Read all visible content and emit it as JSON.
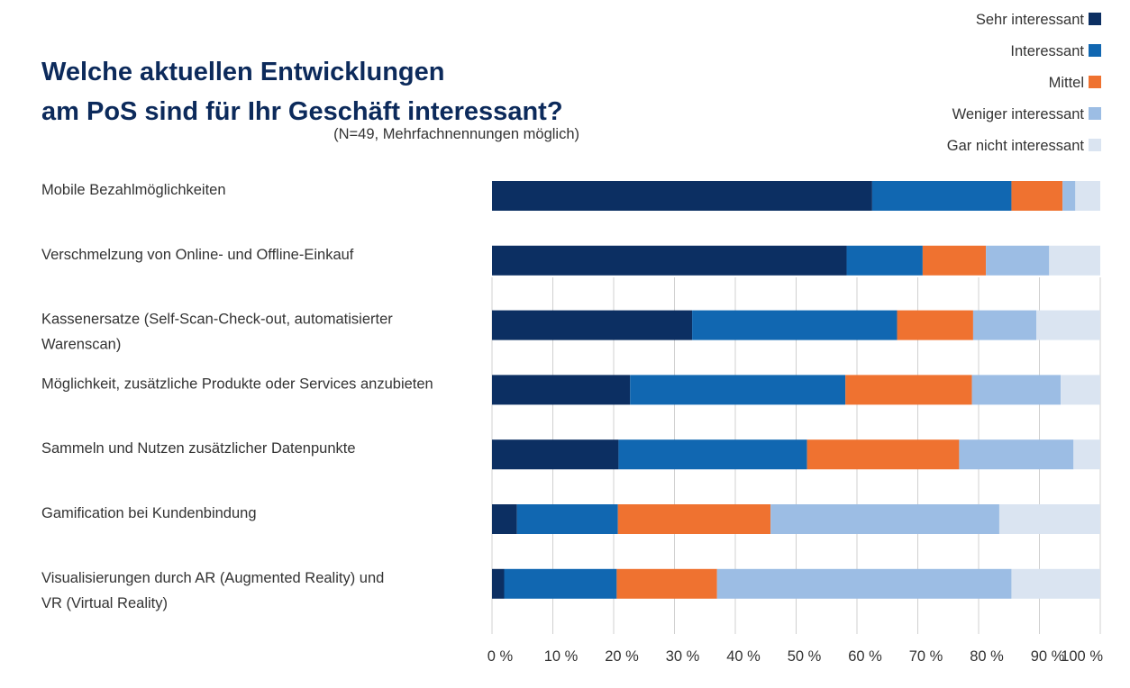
{
  "chart_data": {
    "type": "bar",
    "orientation": "horizontal",
    "stacked": true,
    "title_lines": [
      "Welche aktuellen Entwicklungen",
      "am PoS sind für Ihr Geschäft interessant?"
    ],
    "subtitle": "(N=49, Mehrfachnennungen möglich)",
    "categories": [
      [
        "Mobile Bezahlmöglichkeiten"
      ],
      [
        "Verschmelzung von Online- und Offline-Einkauf"
      ],
      [
        "Kassenersatze (Self-Scan-Check-out, automatisierter",
        "Warenscan)"
      ],
      [
        "Möglichkeit, zusätzliche Produkte oder Services anzubieten"
      ],
      [
        "Sammeln und Nutzen zusätzlicher Datenpunkte"
      ],
      [
        "Gamification bei Kundenbindung"
      ],
      [
        "Visualisierungen durch AR (Augmented Reality) und",
        "VR (Virtual Reality)"
      ]
    ],
    "series": [
      {
        "name": "Sehr interessant",
        "color": "#0c2f62",
        "values": [
          62.5,
          58.3,
          32.9,
          22.7,
          20.8,
          4.1,
          2.0
        ]
      },
      {
        "name": "Interessant",
        "color": "#1167b1",
        "values": [
          22.9,
          12.5,
          33.7,
          35.4,
          31.0,
          16.6,
          18.5
        ]
      },
      {
        "name": "Mittel",
        "color": "#ef7230",
        "values": [
          8.4,
          10.4,
          12.5,
          20.8,
          25.0,
          25.1,
          16.5
        ]
      },
      {
        "name": "Weniger interessant",
        "color": "#9cbde4",
        "values": [
          2.1,
          10.4,
          10.4,
          14.6,
          18.8,
          37.6,
          48.4
        ]
      },
      {
        "name": "Gar nicht interessant",
        "color": "#dae4f1",
        "values": [
          4.1,
          8.4,
          10.5,
          6.5,
          4.4,
          16.6,
          14.6
        ]
      }
    ],
    "xaxis": {
      "ticks": [
        0,
        10,
        20,
        30,
        40,
        50,
        60,
        70,
        80,
        90,
        100
      ],
      "tick_labels": [
        "0 %",
        "10 %",
        "20 %",
        "30 %",
        "40 %",
        "50 %",
        "60 %",
        "70 %",
        "80 %",
        "90 %",
        "100 %"
      ]
    },
    "xlim": [
      0,
      100
    ],
    "grid": "vertical",
    "legend_position": "top-right"
  }
}
